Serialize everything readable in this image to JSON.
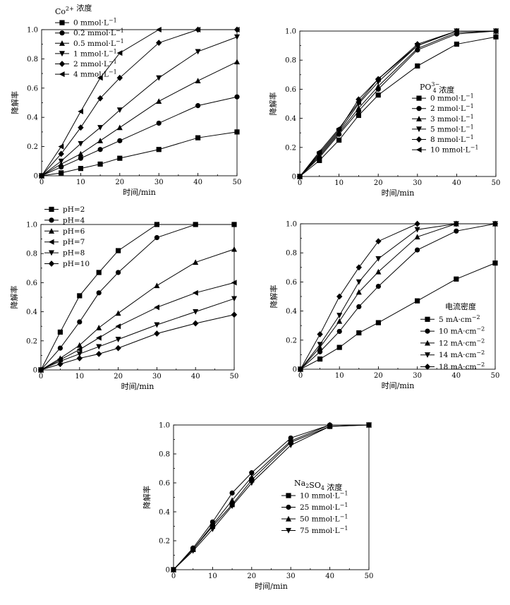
{
  "chart_data": [
    {
      "type": "line",
      "title": "",
      "legend_title": {
        "base": "Co",
        "sup": "2+",
        "suffix": " 浓度"
      },
      "xlabel": "时间/min",
      "ylabel": "降解率",
      "xlim": [
        0,
        50
      ],
      "ylim": [
        0,
        1.0
      ],
      "xticks": [
        "0",
        "10",
        "20",
        "30",
        "40",
        "50"
      ],
      "yticks": [
        "0",
        "0.2",
        "0.4",
        "0.6",
        "0.8",
        "1.0"
      ],
      "legend_position": "top-left",
      "series": [
        {
          "name": "0 mmol·L−1",
          "marker": "square",
          "x": [
            0,
            5,
            10,
            15,
            20,
            30,
            40,
            50
          ],
          "values": [
            0,
            0.02,
            0.05,
            0.08,
            0.12,
            0.18,
            0.26,
            0.3
          ]
        },
        {
          "name": "0.2 mmol·L−1",
          "marker": "circle",
          "x": [
            0,
            5,
            10,
            15,
            20,
            30,
            40,
            50
          ],
          "values": [
            0,
            0.06,
            0.12,
            0.18,
            0.24,
            0.36,
            0.48,
            0.54
          ]
        },
        {
          "name": "0.5 mmol·L−1",
          "marker": "triangle-up",
          "x": [
            0,
            5,
            10,
            15,
            20,
            30,
            40,
            50
          ],
          "values": [
            0,
            0.08,
            0.15,
            0.24,
            0.33,
            0.51,
            0.65,
            0.78
          ]
        },
        {
          "name": "1 mmol·L−1",
          "marker": "triangle-down",
          "x": [
            0,
            5,
            10,
            15,
            20,
            30,
            40,
            50
          ],
          "values": [
            0,
            0.1,
            0.22,
            0.33,
            0.45,
            0.67,
            0.85,
            0.95
          ]
        },
        {
          "name": "2 mmol·L−1",
          "marker": "diamond",
          "x": [
            0,
            5,
            10,
            15,
            20,
            30,
            40,
            50
          ],
          "values": [
            0,
            0.15,
            0.33,
            0.53,
            0.67,
            0.91,
            1.0,
            1.0
          ]
        },
        {
          "name": "4 mmol·L−1",
          "marker": "triangle-left",
          "x": [
            0,
            5,
            10,
            15,
            20,
            30,
            40,
            50
          ],
          "values": [
            0,
            0.2,
            0.44,
            0.67,
            0.84,
            1.0,
            1.0,
            1.0
          ]
        }
      ]
    },
    {
      "type": "line",
      "title": "",
      "legend_title": {
        "base": "PO",
        "sup": "3−",
        "sub": "4",
        "suffix": " 浓度"
      },
      "xlabel": "时间/min",
      "ylabel": "降解率",
      "xlim": [
        0,
        50
      ],
      "ylim": [
        0,
        1.0
      ],
      "xticks": [
        "0",
        "10",
        "20",
        "30",
        "40",
        "50"
      ],
      "yticks": [
        "0",
        "0.2",
        "0.4",
        "0.6",
        "0.8",
        "1.0"
      ],
      "legend_position": "center-right",
      "series": [
        {
          "name": "0 mmol·L−1",
          "marker": "square",
          "x": [
            0,
            5,
            10,
            15,
            20,
            30,
            40,
            50
          ],
          "values": [
            0,
            0.11,
            0.25,
            0.42,
            0.56,
            0.76,
            0.91,
            0.96
          ]
        },
        {
          "name": "2 mmol·L−1",
          "marker": "circle",
          "x": [
            0,
            5,
            10,
            15,
            20,
            30,
            40,
            50
          ],
          "values": [
            0,
            0.13,
            0.29,
            0.45,
            0.6,
            0.87,
            0.98,
            1.0
          ]
        },
        {
          "name": "3 mmol·L−1",
          "marker": "triangle-up",
          "x": [
            0,
            5,
            10,
            15,
            20,
            30,
            40,
            50
          ],
          "values": [
            0,
            0.14,
            0.3,
            0.47,
            0.62,
            0.88,
            0.99,
            1.0
          ]
        },
        {
          "name": "5 mmol·L−1",
          "marker": "triangle-down",
          "x": [
            0,
            5,
            10,
            15,
            20,
            30,
            40,
            50
          ],
          "values": [
            0,
            0.15,
            0.31,
            0.5,
            0.65,
            0.9,
            1.0,
            1.0
          ]
        },
        {
          "name": "8 mmol·L−1",
          "marker": "diamond",
          "x": [
            0,
            5,
            10,
            15,
            20,
            30,
            40,
            50
          ],
          "values": [
            0,
            0.16,
            0.32,
            0.53,
            0.67,
            0.91,
            1.0,
            1.0
          ]
        },
        {
          "name": "10 mmol·L−1",
          "marker": "triangle-left",
          "x": [
            0,
            5,
            10,
            15,
            20,
            30,
            40,
            50
          ],
          "values": [
            0,
            0.17,
            0.33,
            0.51,
            0.67,
            0.9,
            1.0,
            1.0
          ]
        }
      ]
    },
    {
      "type": "line",
      "title": "",
      "legend_title": null,
      "xlabel": "时间/min",
      "ylabel": "降解率",
      "xlim": [
        0,
        50
      ],
      "ylim": [
        0,
        1.0
      ],
      "xticks": [
        "0",
        "10",
        "20",
        "30",
        "40",
        "50"
      ],
      "yticks": [
        "0",
        "0.2",
        "0.4",
        "0.6",
        "0.8",
        "1.0"
      ],
      "legend_position": "top-left",
      "series": [
        {
          "name": "pH=2",
          "marker": "square",
          "x": [
            0,
            5,
            10,
            15,
            20,
            30,
            40,
            50
          ],
          "values": [
            0,
            0.26,
            0.51,
            0.67,
            0.82,
            1.0,
            1.0,
            1.0
          ]
        },
        {
          "name": "pH=4",
          "marker": "circle",
          "x": [
            0,
            5,
            10,
            15,
            20,
            30,
            40,
            50
          ],
          "values": [
            0,
            0.15,
            0.33,
            0.53,
            0.67,
            0.91,
            1.0,
            1.0
          ]
        },
        {
          "name": "pH=6",
          "marker": "triangle-up",
          "x": [
            0,
            5,
            10,
            15,
            20,
            30,
            40,
            50
          ],
          "values": [
            0,
            0.08,
            0.17,
            0.29,
            0.39,
            0.58,
            0.74,
            0.83
          ]
        },
        {
          "name": "pH=7",
          "marker": "triangle-left",
          "x": [
            0,
            5,
            10,
            15,
            20,
            30,
            40,
            50
          ],
          "values": [
            0,
            0.07,
            0.14,
            0.22,
            0.3,
            0.43,
            0.53,
            0.6
          ]
        },
        {
          "name": "pH=8",
          "marker": "triangle-down",
          "x": [
            0,
            5,
            10,
            15,
            20,
            30,
            40,
            50
          ],
          "values": [
            0,
            0.06,
            0.11,
            0.16,
            0.21,
            0.31,
            0.4,
            0.49
          ]
        },
        {
          "name": "pH=10",
          "marker": "diamond",
          "x": [
            0,
            5,
            10,
            15,
            20,
            30,
            40,
            50
          ],
          "values": [
            0,
            0.04,
            0.08,
            0.11,
            0.15,
            0.25,
            0.32,
            0.38
          ]
        }
      ]
    },
    {
      "type": "line",
      "title": "",
      "legend_title": {
        "base": "电流密度"
      },
      "xlabel": "时间/min",
      "ylabel": "降解率",
      "xlim": [
        0,
        50
      ],
      "ylim": [
        0,
        1.0
      ],
      "xticks": [
        "0",
        "10",
        "20",
        "30",
        "40",
        "50"
      ],
      "yticks": [
        "0",
        "0.2",
        "0.4",
        "0.6",
        "0.8",
        "1.0"
      ],
      "legend_position": "center-right",
      "series": [
        {
          "name": "5 mA·cm−2",
          "marker": "square",
          "x": [
            0,
            5,
            10,
            15,
            20,
            30,
            40,
            50
          ],
          "values": [
            0,
            0.07,
            0.15,
            0.25,
            0.32,
            0.47,
            0.62,
            0.73
          ]
        },
        {
          "name": "10 mA·cm−2",
          "marker": "circle",
          "x": [
            0,
            5,
            10,
            15,
            20,
            30,
            40,
            50
          ],
          "values": [
            0,
            0.12,
            0.26,
            0.43,
            0.57,
            0.82,
            0.95,
            1.0
          ]
        },
        {
          "name": "12 mA·cm−2",
          "marker": "triangle-up",
          "x": [
            0,
            5,
            10,
            15,
            20,
            30,
            40,
            50
          ],
          "values": [
            0,
            0.15,
            0.33,
            0.53,
            0.67,
            0.91,
            1.0,
            1.0
          ]
        },
        {
          "name": "14 mA·cm−2",
          "marker": "triangle-down",
          "x": [
            0,
            5,
            10,
            15,
            20,
            30,
            40,
            50
          ],
          "values": [
            0,
            0.17,
            0.37,
            0.6,
            0.76,
            0.96,
            1.0,
            1.0
          ]
        },
        {
          "name": "18 mA·cm−2",
          "marker": "diamond",
          "x": [
            0,
            5,
            10,
            15,
            20,
            30,
            40,
            50
          ],
          "values": [
            0,
            0.24,
            0.5,
            0.7,
            0.88,
            1.0,
            1.0,
            1.0
          ]
        }
      ]
    },
    {
      "type": "line",
      "title": "",
      "legend_title": {
        "base": "Na",
        "sub": "2",
        "mid": "SO",
        "sub2": "4",
        "suffix": " 浓度"
      },
      "xlabel": "时间/min",
      "ylabel": "降解率",
      "xlim": [
        0,
        50
      ],
      "ylim": [
        0,
        1.0
      ],
      "xticks": [
        "0",
        "10",
        "20",
        "30",
        "40",
        "50"
      ],
      "yticks": [
        "0",
        "0.2",
        "0.4",
        "0.6",
        "0.8",
        "1.0"
      ],
      "legend_position": "center-right",
      "series": [
        {
          "name": "10 mmol·L−1",
          "marker": "square",
          "x": [
            0,
            5,
            10,
            15,
            20,
            30,
            40,
            50
          ],
          "values": [
            0,
            0.14,
            0.3,
            0.45,
            0.62,
            0.88,
            0.99,
            1.0
          ]
        },
        {
          "name": "25 mmol·L−1",
          "marker": "circle",
          "x": [
            0,
            5,
            10,
            15,
            20,
            30,
            40,
            50
          ],
          "values": [
            0,
            0.15,
            0.33,
            0.53,
            0.67,
            0.91,
            1.0,
            1.0
          ]
        },
        {
          "name": "50 mmol·L−1",
          "marker": "triangle-up",
          "x": [
            0,
            5,
            10,
            15,
            20,
            30,
            40,
            50
          ],
          "values": [
            0,
            0.14,
            0.31,
            0.48,
            0.64,
            0.89,
            1.0,
            1.0
          ]
        },
        {
          "name": "75 mmol·L−1",
          "marker": "triangle-down",
          "x": [
            0,
            5,
            10,
            15,
            20,
            30,
            40,
            50
          ],
          "values": [
            0,
            0.13,
            0.28,
            0.44,
            0.6,
            0.86,
            0.99,
            1.0
          ]
        }
      ]
    }
  ]
}
